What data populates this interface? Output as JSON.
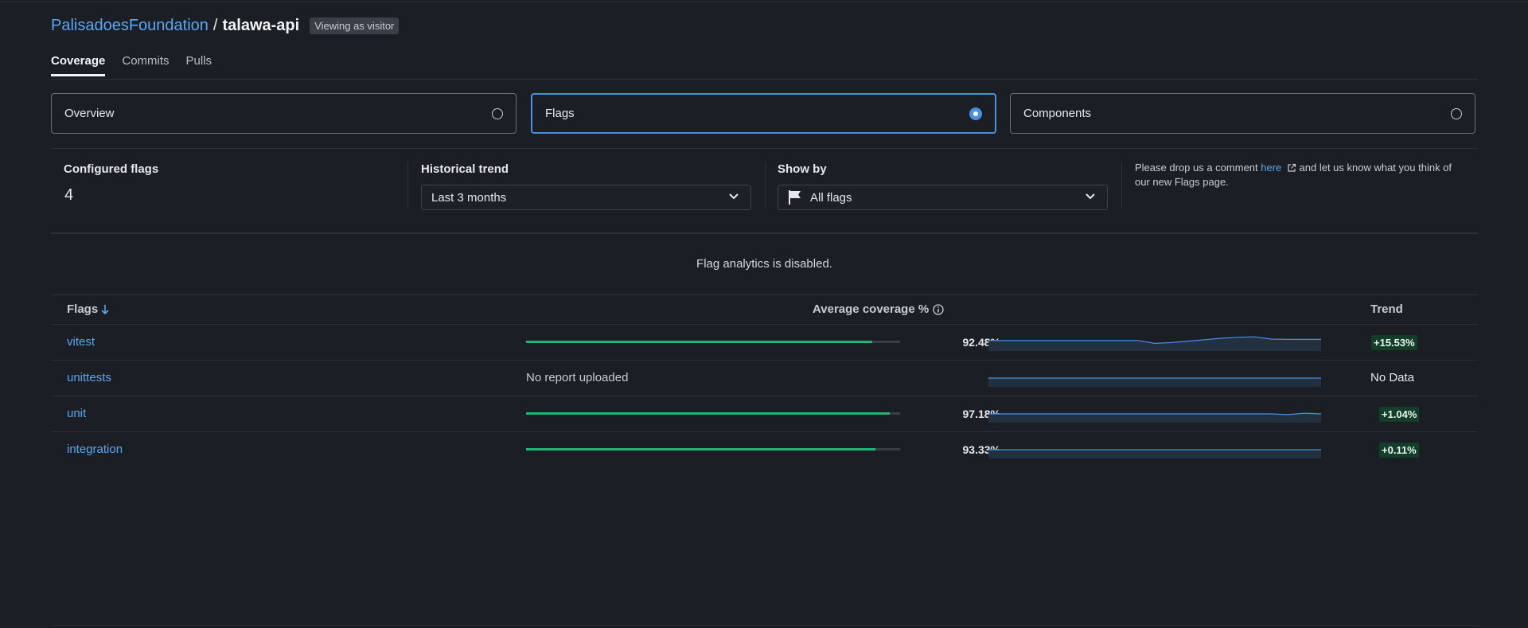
{
  "header": {
    "org": "PalisadoesFoundation",
    "separator": "/",
    "repo": "talawa-api",
    "visitor_badge": "Viewing as visitor"
  },
  "tabs": [
    {
      "label": "Coverage",
      "active": true
    },
    {
      "label": "Commits",
      "active": false
    },
    {
      "label": "Pulls",
      "active": false
    }
  ],
  "views": [
    {
      "label": "Overview",
      "selected": false
    },
    {
      "label": "Flags",
      "selected": true
    },
    {
      "label": "Components",
      "selected": false
    }
  ],
  "controls": {
    "configured_flags_label": "Configured flags",
    "configured_flags_value": "4",
    "historical_trend_label": "Historical trend",
    "historical_trend_value": "Last 3 months",
    "show_by_label": "Show by",
    "show_by_value": "All flags"
  },
  "feedback": {
    "prefix": "Please drop us a comment ",
    "link": "here",
    "suffix": " and let us know what you think of our new Flags page."
  },
  "analytics_message": "Flag analytics is disabled.",
  "table": {
    "col_flags": "Flags",
    "col_coverage": "Average coverage %",
    "col_trend": "Trend",
    "rows": [
      {
        "name": "vitest",
        "coverage": 92.48,
        "coverage_label": "92.48%",
        "no_report": "",
        "trend": "+15.53%",
        "spark": [
          0.62,
          0.62,
          0.62,
          0.62,
          0.62,
          0.62,
          0.62,
          0.62,
          0.62,
          0.62,
          0.42,
          0.48,
          0.58,
          0.68,
          0.78,
          0.85,
          0.88,
          0.72,
          0.7,
          0.7,
          0.7
        ]
      },
      {
        "name": "unittests",
        "coverage": null,
        "coverage_label": "-",
        "no_report": "No report uploaded",
        "trend": "No Data",
        "spark": [
          0.5,
          0.5,
          0.5,
          0.5,
          0.5,
          0.5,
          0.5,
          0.5,
          0.5,
          0.5,
          0.5,
          0.5,
          0.5,
          0.5,
          0.5,
          0.5,
          0.5,
          0.5,
          0.5,
          0.5,
          0.5
        ]
      },
      {
        "name": "unit",
        "coverage": 97.18,
        "coverage_label": "97.18%",
        "no_report": "",
        "trend": "+1.04%",
        "spark": [
          0.5,
          0.5,
          0.5,
          0.5,
          0.5,
          0.5,
          0.5,
          0.5,
          0.5,
          0.5,
          0.5,
          0.5,
          0.5,
          0.5,
          0.5,
          0.5,
          0.5,
          0.5,
          0.45,
          0.55,
          0.5
        ]
      },
      {
        "name": "integration",
        "coverage": 93.33,
        "coverage_label": "93.33%",
        "no_report": "",
        "trend": "+0.11%",
        "spark": [
          0.5,
          0.5,
          0.5,
          0.5,
          0.5,
          0.5,
          0.5,
          0.5,
          0.5,
          0.5,
          0.5,
          0.5,
          0.5,
          0.5,
          0.5,
          0.5,
          0.5,
          0.5,
          0.5,
          0.5,
          0.5
        ]
      }
    ]
  },
  "colors": {
    "accent": "#4a90e2",
    "link": "#5aa8f2",
    "coverage_bar": "#21b577",
    "trend_positive_bg": "#143d2a"
  }
}
